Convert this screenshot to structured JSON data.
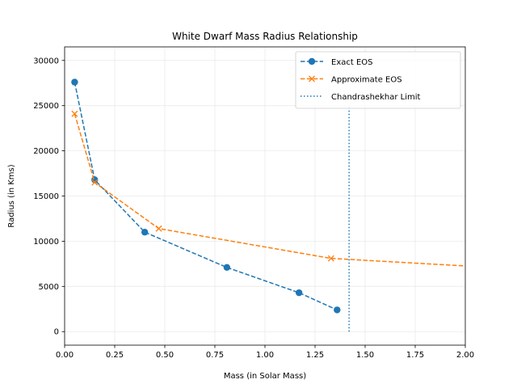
{
  "chart_data": {
    "type": "line",
    "title": "White Dwarf Mass Radius Relationship",
    "xlabel": "Mass (in Solar Mass)",
    "ylabel": "Radius (in Kms)",
    "xlim": [
      0,
      2.0
    ],
    "ylim": [
      -1500,
      31500
    ],
    "xticks": [
      0.0,
      0.25,
      0.5,
      0.75,
      1.0,
      1.25,
      1.5,
      1.75,
      2.0
    ],
    "xtick_labels": [
      "0.00",
      "0.25",
      "0.50",
      "0.75",
      "1.00",
      "1.25",
      "1.50",
      "1.75",
      "2.00"
    ],
    "yticks": [
      0,
      5000,
      10000,
      15000,
      20000,
      25000,
      30000
    ],
    "ytick_labels": [
      "0",
      "5000",
      "10000",
      "15000",
      "20000",
      "25000",
      "30000"
    ],
    "grid": true,
    "legend_position": "top-right",
    "series": [
      {
        "name": "Exact EOS",
        "color": "#1f77b4",
        "marker": "circle",
        "linestyle": "dashed",
        "x": [
          0.05,
          0.15,
          0.4,
          0.81,
          1.17,
          1.36
        ],
        "y": [
          27600,
          16800,
          11000,
          7100,
          4300,
          2400
        ]
      },
      {
        "name": "Approximate EOS",
        "color": "#ff7f0e",
        "marker": "x",
        "linestyle": "dashed",
        "x": [
          0.05,
          0.15,
          0.47,
          1.33,
          2.05
        ],
        "y": [
          24100,
          16500,
          11400,
          8100,
          7200
        ]
      }
    ],
    "reference_lines": [
      {
        "name": "Chandrashekhar Limit",
        "color": "#1f77b4",
        "linestyle": "dotted",
        "x": 1.42,
        "y_range": [
          0,
          25000
        ]
      }
    ]
  }
}
